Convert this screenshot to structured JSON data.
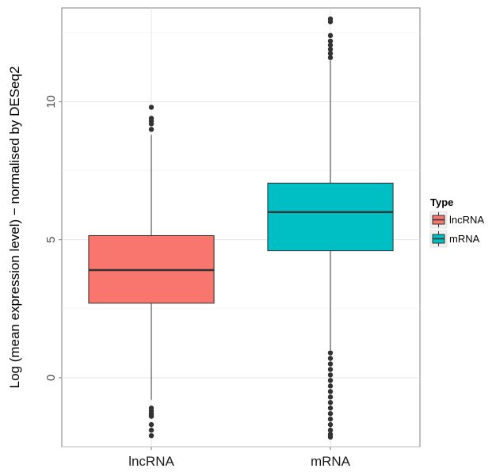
{
  "chart_data": {
    "type": "box",
    "title": "",
    "xlabel": "",
    "ylabel": "Log (mean expression level) − normalised by DESeq2",
    "categories": [
      "lncRNA",
      "mRNA"
    ],
    "ylim": [
      -2.5,
      13.4
    ],
    "yticks": [
      0,
      5,
      10
    ],
    "grid": true,
    "legend": {
      "title": "Type",
      "placement": "right",
      "entries": [
        "lncRNA",
        "mRNA"
      ]
    },
    "colors": {
      "lncRNA": "#F8766D",
      "mRNA": "#00BFC4"
    },
    "boxes": [
      {
        "category": "lncRNA",
        "whisker_low": -0.8,
        "q1": 2.7,
        "median": 3.9,
        "q3": 5.15,
        "whisker_high": 8.8,
        "outliers": [
          -1.1,
          -1.2,
          -1.3,
          -1.35,
          -1.4,
          -1.7,
          -1.9,
          -2.1,
          9.0,
          9.2,
          9.3,
          9.4,
          9.8
        ]
      },
      {
        "category": "mRNA",
        "whisker_low": 1.0,
        "q1": 4.6,
        "median": 6.0,
        "q3": 7.05,
        "whisker_high": 11.5,
        "outliers": [
          0.9,
          0.7,
          0.5,
          0.3,
          0.1,
          -0.1,
          -0.3,
          -0.5,
          -0.7,
          -0.9,
          -1.1,
          -1.3,
          -1.5,
          -1.7,
          -1.9,
          -2.05,
          -2.15,
          11.6,
          11.75,
          11.9,
          12.05,
          12.2,
          12.4,
          12.9,
          13.0
        ]
      }
    ]
  }
}
